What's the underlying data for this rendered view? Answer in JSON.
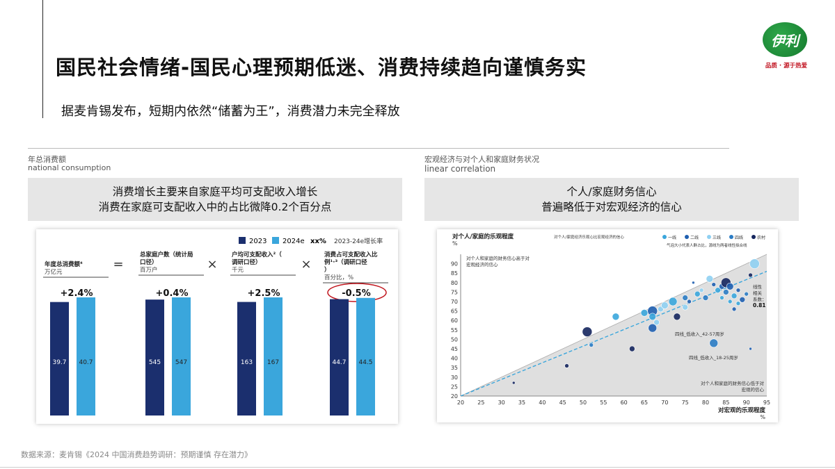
{
  "title": "国民社会情绪-国民心理预期低迷、消费持续趋向谨慎务实",
  "subtitle": "据麦肯锡发布，短期内依然“储蓄为王”，消费潜力未完全释放",
  "logo": {
    "mark": "伊利",
    "tagline": "品质 · 源于热爱"
  },
  "left_section": {
    "label_cn": "年总消费额",
    "label_en": "national consumption",
    "headline_1": "消费增长主要来自家庭平均可支配收入增长",
    "headline_2": "消费在家庭可支配收入中的占比微降0.2个百分点"
  },
  "right_section": {
    "label_cn": "宏观经济与对个人和家庭财务状况",
    "label_en": "linear correlation",
    "headline_1": "个人/家庭财务信心",
    "headline_2": "普遍略低于对宏观经济的信心"
  },
  "footer": "数据来源：麦肯锡《2024 中国消费趋势调研：预期谨慎 存在潜力》",
  "colors": {
    "dark": "#1b2f6e",
    "light": "#3aa6dc",
    "growth_circle": "#c0141c"
  },
  "chart_data": [
    {
      "type": "bar",
      "legend": [
        {
          "name": "2023",
          "color": "#1b2f6e"
        },
        {
          "name": "2024e",
          "color": "#3aa6dc"
        },
        {
          "name": "xx%",
          "desc": "2023-24e增长率"
        }
      ],
      "operators": [
        "=",
        "×",
        "×"
      ],
      "groups": [
        {
          "label": "年度总消费额⁴",
          "unit": "万亿元",
          "growth": "+2.4%",
          "values": [
            39.7,
            40.7
          ]
        },
        {
          "label": "总家庭户数（统计局口径）",
          "unit": "百万户",
          "growth": "+0.4%",
          "values": [
            545,
            547
          ]
        },
        {
          "label": "户均可支配收入²（调研口径）",
          "unit": "千元",
          "growth": "+2.5%",
          "values": [
            163,
            167
          ]
        },
        {
          "label": "消费占可支配收入比例¹·³（调研口径）",
          "unit": "百分比，%",
          "growth": "-0.5%",
          "values": [
            44.7,
            44.5
          ],
          "highlight": true
        }
      ],
      "series": [
        {
          "name": "2023",
          "values": [
            39.7,
            545,
            163,
            44.7
          ]
        },
        {
          "name": "2024e",
          "values": [
            40.7,
            547,
            167,
            44.5
          ]
        }
      ]
    },
    {
      "type": "scatter",
      "ylabel": "对个人/家庭的乐观程度",
      "ylabel_unit": "%",
      "xlabel": "对宏观的乐观程度",
      "xlabel_unit": "%",
      "xlim": [
        20,
        95
      ],
      "ylim": [
        20,
        95
      ],
      "xticks": [
        20,
        25,
        30,
        35,
        40,
        45,
        50,
        55,
        60,
        65,
        70,
        75,
        80,
        85,
        90,
        95
      ],
      "yticks": [
        20,
        25,
        30,
        35,
        40,
        45,
        50,
        55,
        60,
        65,
        70,
        75,
        80,
        85,
        90
      ],
      "legend_title": "对个人/家庭经济乐观心比宏观经济的信心",
      "legend_items": [
        {
          "name": "一线",
          "color": "#3aa6dc"
        },
        {
          "name": "二线",
          "color": "#1f5fb0"
        },
        {
          "name": "三线",
          "color": "#8fd0f2"
        },
        {
          "name": "四线",
          "color": "#2b7cc4"
        },
        {
          "name": "农村",
          "color": "#15265e"
        }
      ],
      "legend_note": "气泡大小代表人群占比，源线为两者线性拟合线",
      "annotation_upper": "对个人和家庭的财务信心高于对宏观经济的信心",
      "annotation_lower": "对个人和家庭的财务信心低于对宏观的信心",
      "correlation_label": "线性相关系数：",
      "correlation_value": "0.81",
      "callouts": [
        "四线_低收入_42-57周岁",
        "四线_低收入_18-25周岁"
      ],
      "points": [
        {
          "x": 33,
          "y": 27,
          "s": 2,
          "tier": 4
        },
        {
          "x": 46,
          "y": 36,
          "s": 3,
          "tier": 4
        },
        {
          "x": 51,
          "y": 54,
          "s": 7,
          "tier": 4
        },
        {
          "x": 52,
          "y": 47,
          "s": 3,
          "tier": 3
        },
        {
          "x": 58,
          "y": 62,
          "s": 5,
          "tier": 0
        },
        {
          "x": 62,
          "y": 45,
          "s": 4,
          "tier": 4
        },
        {
          "x": 65,
          "y": 64,
          "s": 5,
          "tier": 0
        },
        {
          "x": 67,
          "y": 65,
          "s": 7,
          "tier": 1
        },
        {
          "x": 67,
          "y": 62,
          "s": 5,
          "tier": 0
        },
        {
          "x": 67,
          "y": 56,
          "s": 6,
          "tier": 1
        },
        {
          "x": 68,
          "y": 59,
          "s": 4,
          "tier": 2
        },
        {
          "x": 69,
          "y": 66,
          "s": 4,
          "tier": 2
        },
        {
          "x": 70,
          "y": 68,
          "s": 5,
          "tier": 2
        },
        {
          "x": 72,
          "y": 70,
          "s": 6,
          "tier": 0
        },
        {
          "x": 73,
          "y": 62,
          "s": 5,
          "tier": 4
        },
        {
          "x": 75,
          "y": 72,
          "s": 4,
          "tier": 3
        },
        {
          "x": 75,
          "y": 67,
          "s": 4,
          "tier": 2
        },
        {
          "x": 76,
          "y": 70,
          "s": 3,
          "tier": 1
        },
        {
          "x": 77,
          "y": 80,
          "s": 2,
          "tier": 1
        },
        {
          "x": 78,
          "y": 74,
          "s": 4,
          "tier": 0
        },
        {
          "x": 79,
          "y": 76,
          "s": 3,
          "tier": 2
        },
        {
          "x": 80,
          "y": 72,
          "s": 4,
          "tier": 3
        },
        {
          "x": 81,
          "y": 82,
          "s": 5,
          "tier": 2
        },
        {
          "x": 82,
          "y": 48,
          "s": 6,
          "tier": 3
        },
        {
          "x": 82,
          "y": 79,
          "s": 3,
          "tier": 1
        },
        {
          "x": 83,
          "y": 76,
          "s": 4,
          "tier": 0
        },
        {
          "x": 84,
          "y": 78,
          "s": 4,
          "tier": 1
        },
        {
          "x": 84,
          "y": 72,
          "s": 3,
          "tier": 0
        },
        {
          "x": 85,
          "y": 80,
          "s": 7,
          "tier": 4
        },
        {
          "x": 85,
          "y": 75,
          "s": 4,
          "tier": 3
        },
        {
          "x": 86,
          "y": 78,
          "s": 5,
          "tier": 1
        },
        {
          "x": 86,
          "y": 70,
          "s": 3,
          "tier": 0
        },
        {
          "x": 87,
          "y": 73,
          "s": 4,
          "tier": 0
        },
        {
          "x": 87,
          "y": 66,
          "s": 3,
          "tier": 1
        },
        {
          "x": 88,
          "y": 76,
          "s": 3,
          "tier": 1
        },
        {
          "x": 88,
          "y": 69,
          "s": 3,
          "tier": 0
        },
        {
          "x": 89,
          "y": 71,
          "s": 4,
          "tier": 1
        },
        {
          "x": 90,
          "y": 74,
          "s": 3,
          "tier": 3
        },
        {
          "x": 91,
          "y": 84,
          "s": 3,
          "tier": 4
        },
        {
          "x": 91,
          "y": 45,
          "s": 2,
          "tier": 1
        },
        {
          "x": 92,
          "y": 90,
          "s": 7,
          "tier": 2
        }
      ]
    }
  ]
}
